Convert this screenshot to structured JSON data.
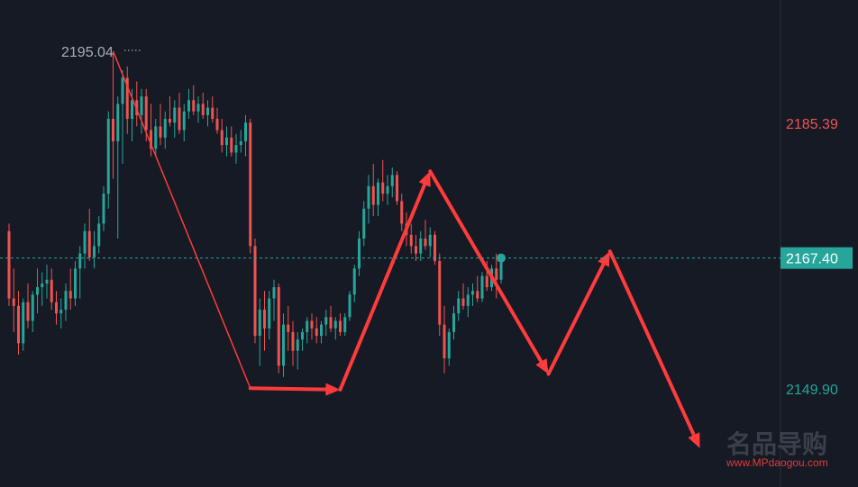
{
  "chart_data": {
    "type": "candlestick",
    "y_axis_labels": [
      {
        "value": 2185.39,
        "text": "2185.39",
        "color": "#ef5350"
      },
      {
        "value": 2149.9,
        "text": "2149.90",
        "color": "#26a69a"
      }
    ],
    "current_price": {
      "value": 2167.4,
      "text": "2167.40",
      "badge_color": "#26a69a"
    },
    "peak_label": {
      "value": 2195.04,
      "text": "2195.04"
    },
    "ylim": [
      2138,
      2199
    ],
    "colors": {
      "up": "#26a69a",
      "down": "#ef5350",
      "background": "#161a25",
      "arrow": "#ff3b3b"
    },
    "candles": [
      [
        2171.0,
        2172.0,
        2161.0,
        2162.0
      ],
      [
        2162.0,
        2166.0,
        2157.5,
        2161.0
      ],
      [
        2161.0,
        2163.0,
        2154.5,
        2156.0
      ],
      [
        2156.0,
        2162.0,
        2155.0,
        2161.5
      ],
      [
        2161.5,
        2164.0,
        2158.0,
        2159.0
      ],
      [
        2159.0,
        2163.0,
        2157.5,
        2162.5
      ],
      [
        2162.5,
        2166.0,
        2160.0,
        2163.5
      ],
      [
        2163.5,
        2165.5,
        2161.0,
        2164.0
      ],
      [
        2164.0,
        2166.5,
        2162.0,
        2164.5
      ],
      [
        2164.5,
        2166.0,
        2160.5,
        2161.5
      ],
      [
        2161.5,
        2163.0,
        2158.5,
        2160.0
      ],
      [
        2160.0,
        2162.0,
        2158.0,
        2160.5
      ],
      [
        2160.5,
        2164.0,
        2159.0,
        2163.0
      ],
      [
        2163.0,
        2166.0,
        2160.5,
        2162.0
      ],
      [
        2162.0,
        2167.0,
        2161.0,
        2166.0
      ],
      [
        2166.0,
        2169.0,
        2162.0,
        2168.0
      ],
      [
        2168.0,
        2172.0,
        2166.0,
        2171.0
      ],
      [
        2171.0,
        2174.0,
        2167.0,
        2167.5
      ],
      [
        2167.5,
        2171.0,
        2166.0,
        2169.0
      ],
      [
        2169.0,
        2173.0,
        2168.0,
        2172.0
      ],
      [
        2172.0,
        2177.0,
        2171.0,
        2176.0
      ],
      [
        2176.0,
        2187.0,
        2174.0,
        2186.0
      ],
      [
        2186.0,
        2195.04,
        2178.0,
        2183.0
      ],
      [
        2183.0,
        2189.0,
        2170.0,
        2188.0
      ],
      [
        2188.0,
        2192.5,
        2180.0,
        2191.5
      ],
      [
        2191.5,
        2193.0,
        2184.0,
        2186.0
      ],
      [
        2186.0,
        2190.0,
        2183.0,
        2188.5
      ],
      [
        2188.5,
        2191.0,
        2185.0,
        2186.5
      ],
      [
        2186.5,
        2190.0,
        2184.0,
        2189.0
      ],
      [
        2189.0,
        2190.0,
        2183.0,
        2184.5
      ],
      [
        2184.5,
        2188.0,
        2181.0,
        2182.0
      ],
      [
        2182.0,
        2186.0,
        2181.0,
        2185.0
      ],
      [
        2185.0,
        2188.0,
        2182.5,
        2183.5
      ],
      [
        2183.5,
        2187.0,
        2182.0,
        2186.0
      ],
      [
        2186.0,
        2189.0,
        2185.0,
        2185.5
      ],
      [
        2185.5,
        2188.5,
        2183.5,
        2187.5
      ],
      [
        2187.5,
        2189.5,
        2184.0,
        2184.5
      ],
      [
        2184.5,
        2188.0,
        2183.0,
        2187.0
      ],
      [
        2187.0,
        2190.0,
        2186.0,
        2188.5
      ],
      [
        2188.5,
        2190.5,
        2186.5,
        2187.0
      ],
      [
        2187.0,
        2189.0,
        2185.5,
        2188.0
      ],
      [
        2188.0,
        2189.5,
        2186.0,
        2186.5
      ],
      [
        2186.5,
        2188.5,
        2185.0,
        2187.5
      ],
      [
        2187.5,
        2189.0,
        2185.5,
        2186.0
      ],
      [
        2186.0,
        2187.5,
        2184.0,
        2184.5
      ],
      [
        2184.5,
        2186.0,
        2181.5,
        2182.5
      ],
      [
        2182.5,
        2185.0,
        2181.0,
        2183.5
      ],
      [
        2183.5,
        2185.0,
        2181.0,
        2181.5
      ],
      [
        2181.5,
        2184.0,
        2180.0,
        2182.5
      ],
      [
        2182.5,
        2184.5,
        2181.5,
        2183.0
      ],
      [
        2183.0,
        2186.5,
        2181.0,
        2185.5
      ],
      [
        2185.5,
        2186.0,
        2168.0,
        2169.0
      ],
      [
        2169.0,
        2170.0,
        2156.0,
        2157.0
      ],
      [
        2157.0,
        2162.0,
        2153.0,
        2160.5
      ],
      [
        2160.5,
        2163.0,
        2155.0,
        2158.0
      ],
      [
        2158.0,
        2163.0,
        2156.5,
        2162.0
      ],
      [
        2162.0,
        2164.5,
        2159.0,
        2163.5
      ],
      [
        2163.5,
        2164.0,
        2152.0,
        2153.0
      ],
      [
        2153.0,
        2160.0,
        2151.5,
        2158.5
      ],
      [
        2158.5,
        2161.0,
        2155.0,
        2157.5
      ],
      [
        2157.5,
        2159.0,
        2153.0,
        2155.0
      ],
      [
        2155.0,
        2157.5,
        2152.5,
        2156.5
      ],
      [
        2156.5,
        2158.0,
        2155.0,
        2157.5
      ],
      [
        2157.5,
        2159.5,
        2156.0,
        2159.0
      ],
      [
        2159.0,
        2160.0,
        2156.5,
        2158.0
      ],
      [
        2158.0,
        2159.5,
        2156.0,
        2157.0
      ],
      [
        2157.0,
        2159.0,
        2156.0,
        2158.5
      ],
      [
        2158.5,
        2160.5,
        2157.0,
        2159.5
      ],
      [
        2159.5,
        2161.0,
        2157.5,
        2158.0
      ],
      [
        2158.0,
        2159.5,
        2156.5,
        2159.0
      ],
      [
        2159.0,
        2160.0,
        2157.0,
        2157.5
      ],
      [
        2157.5,
        2160.0,
        2157.0,
        2159.5
      ],
      [
        2159.5,
        2163.0,
        2159.0,
        2162.5
      ],
      [
        2162.5,
        2166.5,
        2161.5,
        2166.0
      ],
      [
        2166.0,
        2171.0,
        2165.0,
        2170.0
      ],
      [
        2170.0,
        2175.0,
        2169.0,
        2174.0
      ],
      [
        2174.0,
        2178.5,
        2172.0,
        2177.0
      ],
      [
        2177.0,
        2180.0,
        2173.0,
        2174.5
      ],
      [
        2174.5,
        2178.0,
        2173.0,
        2177.5
      ],
      [
        2177.5,
        2180.5,
        2175.0,
        2176.0
      ],
      [
        2176.0,
        2178.5,
        2174.5,
        2177.0
      ],
      [
        2177.0,
        2179.5,
        2175.5,
        2178.5
      ],
      [
        2178.5,
        2179.0,
        2174.5,
        2175.0
      ],
      [
        2175.0,
        2176.0,
        2171.0,
        2172.0
      ],
      [
        2172.0,
        2173.5,
        2169.0,
        2170.5
      ],
      [
        2170.5,
        2172.0,
        2168.0,
        2169.0
      ],
      [
        2169.0,
        2170.5,
        2167.0,
        2168.0
      ],
      [
        2168.0,
        2171.0,
        2167.0,
        2170.0
      ],
      [
        2170.0,
        2172.5,
        2168.5,
        2169.0
      ],
      [
        2169.0,
        2171.5,
        2167.5,
        2170.5
      ],
      [
        2170.5,
        2171.0,
        2166.5,
        2167.0
      ],
      [
        2167.0,
        2168.0,
        2157.0,
        2158.5
      ],
      [
        2158.5,
        2161.0,
        2152.0,
        2154.0
      ],
      [
        2154.0,
        2158.0,
        2153.0,
        2157.5
      ],
      [
        2157.5,
        2161.0,
        2156.5,
        2160.0
      ],
      [
        2160.0,
        2163.0,
        2159.0,
        2162.0
      ],
      [
        2162.0,
        2164.0,
        2160.5,
        2161.0
      ],
      [
        2161.0,
        2163.5,
        2159.5,
        2162.5
      ],
      [
        2162.5,
        2164.0,
        2161.0,
        2163.0
      ],
      [
        2163.0,
        2165.0,
        2161.5,
        2162.0
      ],
      [
        2162.0,
        2165.5,
        2161.5,
        2165.0
      ],
      [
        2165.0,
        2167.0,
        2163.0,
        2163.5
      ],
      [
        2163.5,
        2166.5,
        2163.0,
        2166.0
      ],
      [
        2166.0,
        2168.0,
        2162.0,
        2164.5
      ],
      [
        2164.5,
        2167.5,
        2164.0,
        2167.4
      ]
    ],
    "arrows": [
      {
        "from": [
          22,
          2195.04
        ],
        "to": [
          51,
          2150.0
        ],
        "style": "thin"
      },
      {
        "from": [
          51,
          2150.0
        ],
        "to": [
          70,
          2149.8
        ],
        "style": "bold-arrow"
      },
      {
        "from": [
          70,
          2149.8
        ],
        "to": [
          89,
          2179.0
        ],
        "style": "bold-arrow"
      },
      {
        "from": [
          89,
          2179.0
        ],
        "to": [
          114,
          2151.9
        ],
        "style": "bold-arrow"
      },
      {
        "from": [
          114,
          2151.9
        ],
        "to": [
          127,
          2168.3
        ],
        "style": "bold-arrow"
      },
      {
        "from": [
          127,
          2168.3
        ],
        "to": [
          146,
          2142.0
        ],
        "style": "bold-arrow"
      }
    ]
  },
  "watermark": {
    "cn_text": "名品导购",
    "url": "www.MPdaogou.com"
  }
}
